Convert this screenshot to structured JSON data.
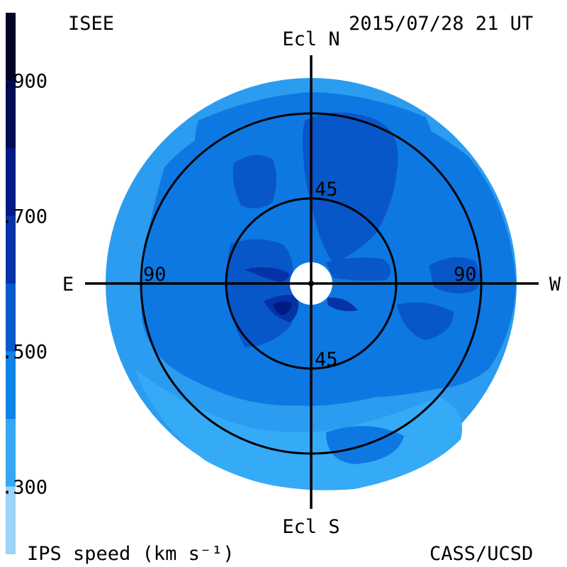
{
  "header": {
    "source": "ISEE",
    "datetime": "2015/07/28 21 UT"
  },
  "footer": {
    "quantity": "IPS speed (km s⁻¹)",
    "credit": "CASS/UCSD"
  },
  "colorbar": {
    "ticks": [
      {
        "value": 900,
        "label": ".900"
      },
      {
        "value": 700,
        "label": ".700"
      },
      {
        "value": 500,
        "label": ".500"
      },
      {
        "value": 300,
        "label": ".300"
      }
    ],
    "min": 200,
    "max": 1000,
    "levels": [
      {
        "from": 200,
        "to": 300,
        "color": "#9ed2f8"
      },
      {
        "from": 300,
        "to": 400,
        "color": "#35a7f4"
      },
      {
        "from": 400,
        "to": 500,
        "color": "#0d82e8"
      },
      {
        "from": 500,
        "to": 600,
        "color": "#0859cc"
      },
      {
        "from": 600,
        "to": 700,
        "color": "#0534a8"
      },
      {
        "from": 700,
        "to": 800,
        "color": "#011a84"
      },
      {
        "from": 800,
        "to": 900,
        "color": "#000c52"
      },
      {
        "from": 900,
        "to": 1000,
        "color": "#000526"
      }
    ]
  },
  "chart_data": {
    "type": "heatmap",
    "projection": "polar map of sky around Sun",
    "compass": {
      "north": "Ecl N",
      "south": "Ecl S",
      "east": "E",
      "west": "W"
    },
    "elongation_rings": [
      {
        "value": 45,
        "label": "45"
      },
      {
        "value": 90,
        "label": "90"
      }
    ],
    "ring_labels": {
      "inner_top": "45",
      "inner_bottom": "45",
      "outer_left": "90",
      "outer_right": "90"
    },
    "regions": [
      {
        "name": "background-slow",
        "speed_kms": 350
      },
      {
        "name": "mid-latitude-band",
        "speed_kms": 450
      },
      {
        "name": "north-fast-lobe",
        "speed_kms": 550
      },
      {
        "name": "northwest-lobe",
        "speed_kms": 550
      },
      {
        "name": "east-fast-lobe",
        "speed_kms": 550
      },
      {
        "name": "west-inner-lobe",
        "speed_kms": 550
      },
      {
        "name": "near-sun-fast-east",
        "speed_kms": 650
      },
      {
        "name": "near-sun-fast-southeast",
        "speed_kms": 650
      },
      {
        "name": "near-sun-fast-west",
        "speed_kms": 650
      },
      {
        "name": "southeast-spot",
        "speed_kms": 750
      }
    ]
  }
}
